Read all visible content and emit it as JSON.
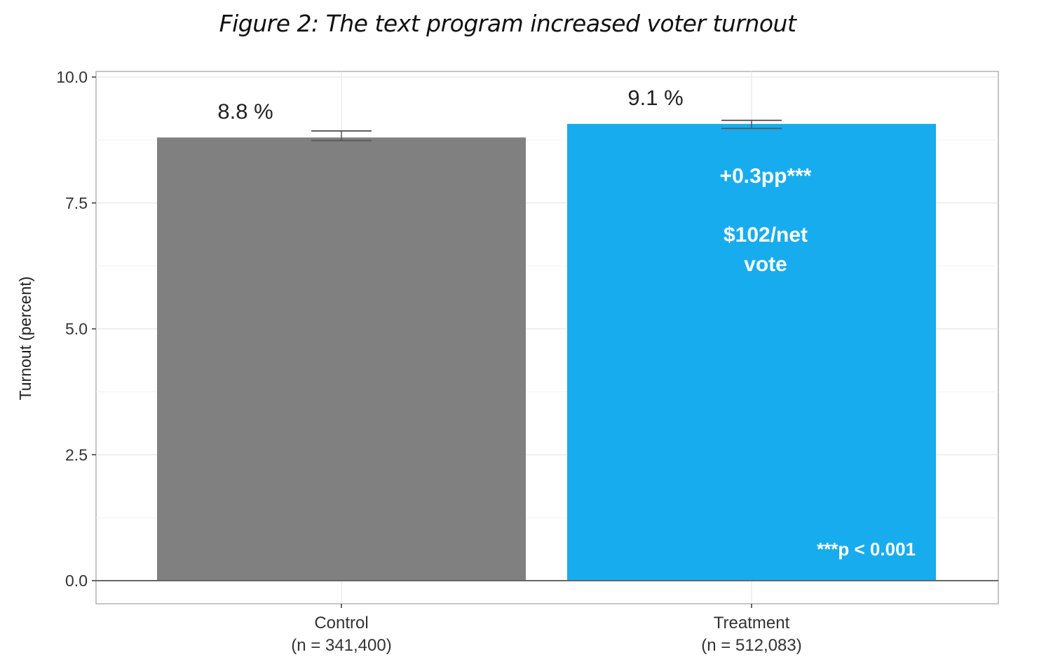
{
  "chart_data": {
    "type": "bar",
    "title": "Figure 2: The text program increased voter turnout",
    "xlabel": "",
    "ylabel": "Turnout (percent)",
    "ylim": [
      0,
      10
    ],
    "yticks": [
      "0.0",
      "2.5",
      "5.0",
      "7.5",
      "10.0"
    ],
    "grid": true,
    "categories": [
      "Control",
      "Treatment"
    ],
    "category_sublabels": [
      "(n = 341,400)",
      "(n = 512,083)"
    ],
    "values": [
      8.8,
      9.07
    ],
    "error_bars": [
      [
        8.74,
        8.93
      ],
      [
        8.98,
        9.14
      ]
    ],
    "data_labels": [
      "8.8 %",
      "9.1 %"
    ],
    "colors": [
      "#808080",
      "#17acee"
    ],
    "annotations": {
      "effect": "+0.3pp***",
      "cost_line1": "$102/net",
      "cost_line2": "vote",
      "significance": "***p < 0.001"
    }
  }
}
